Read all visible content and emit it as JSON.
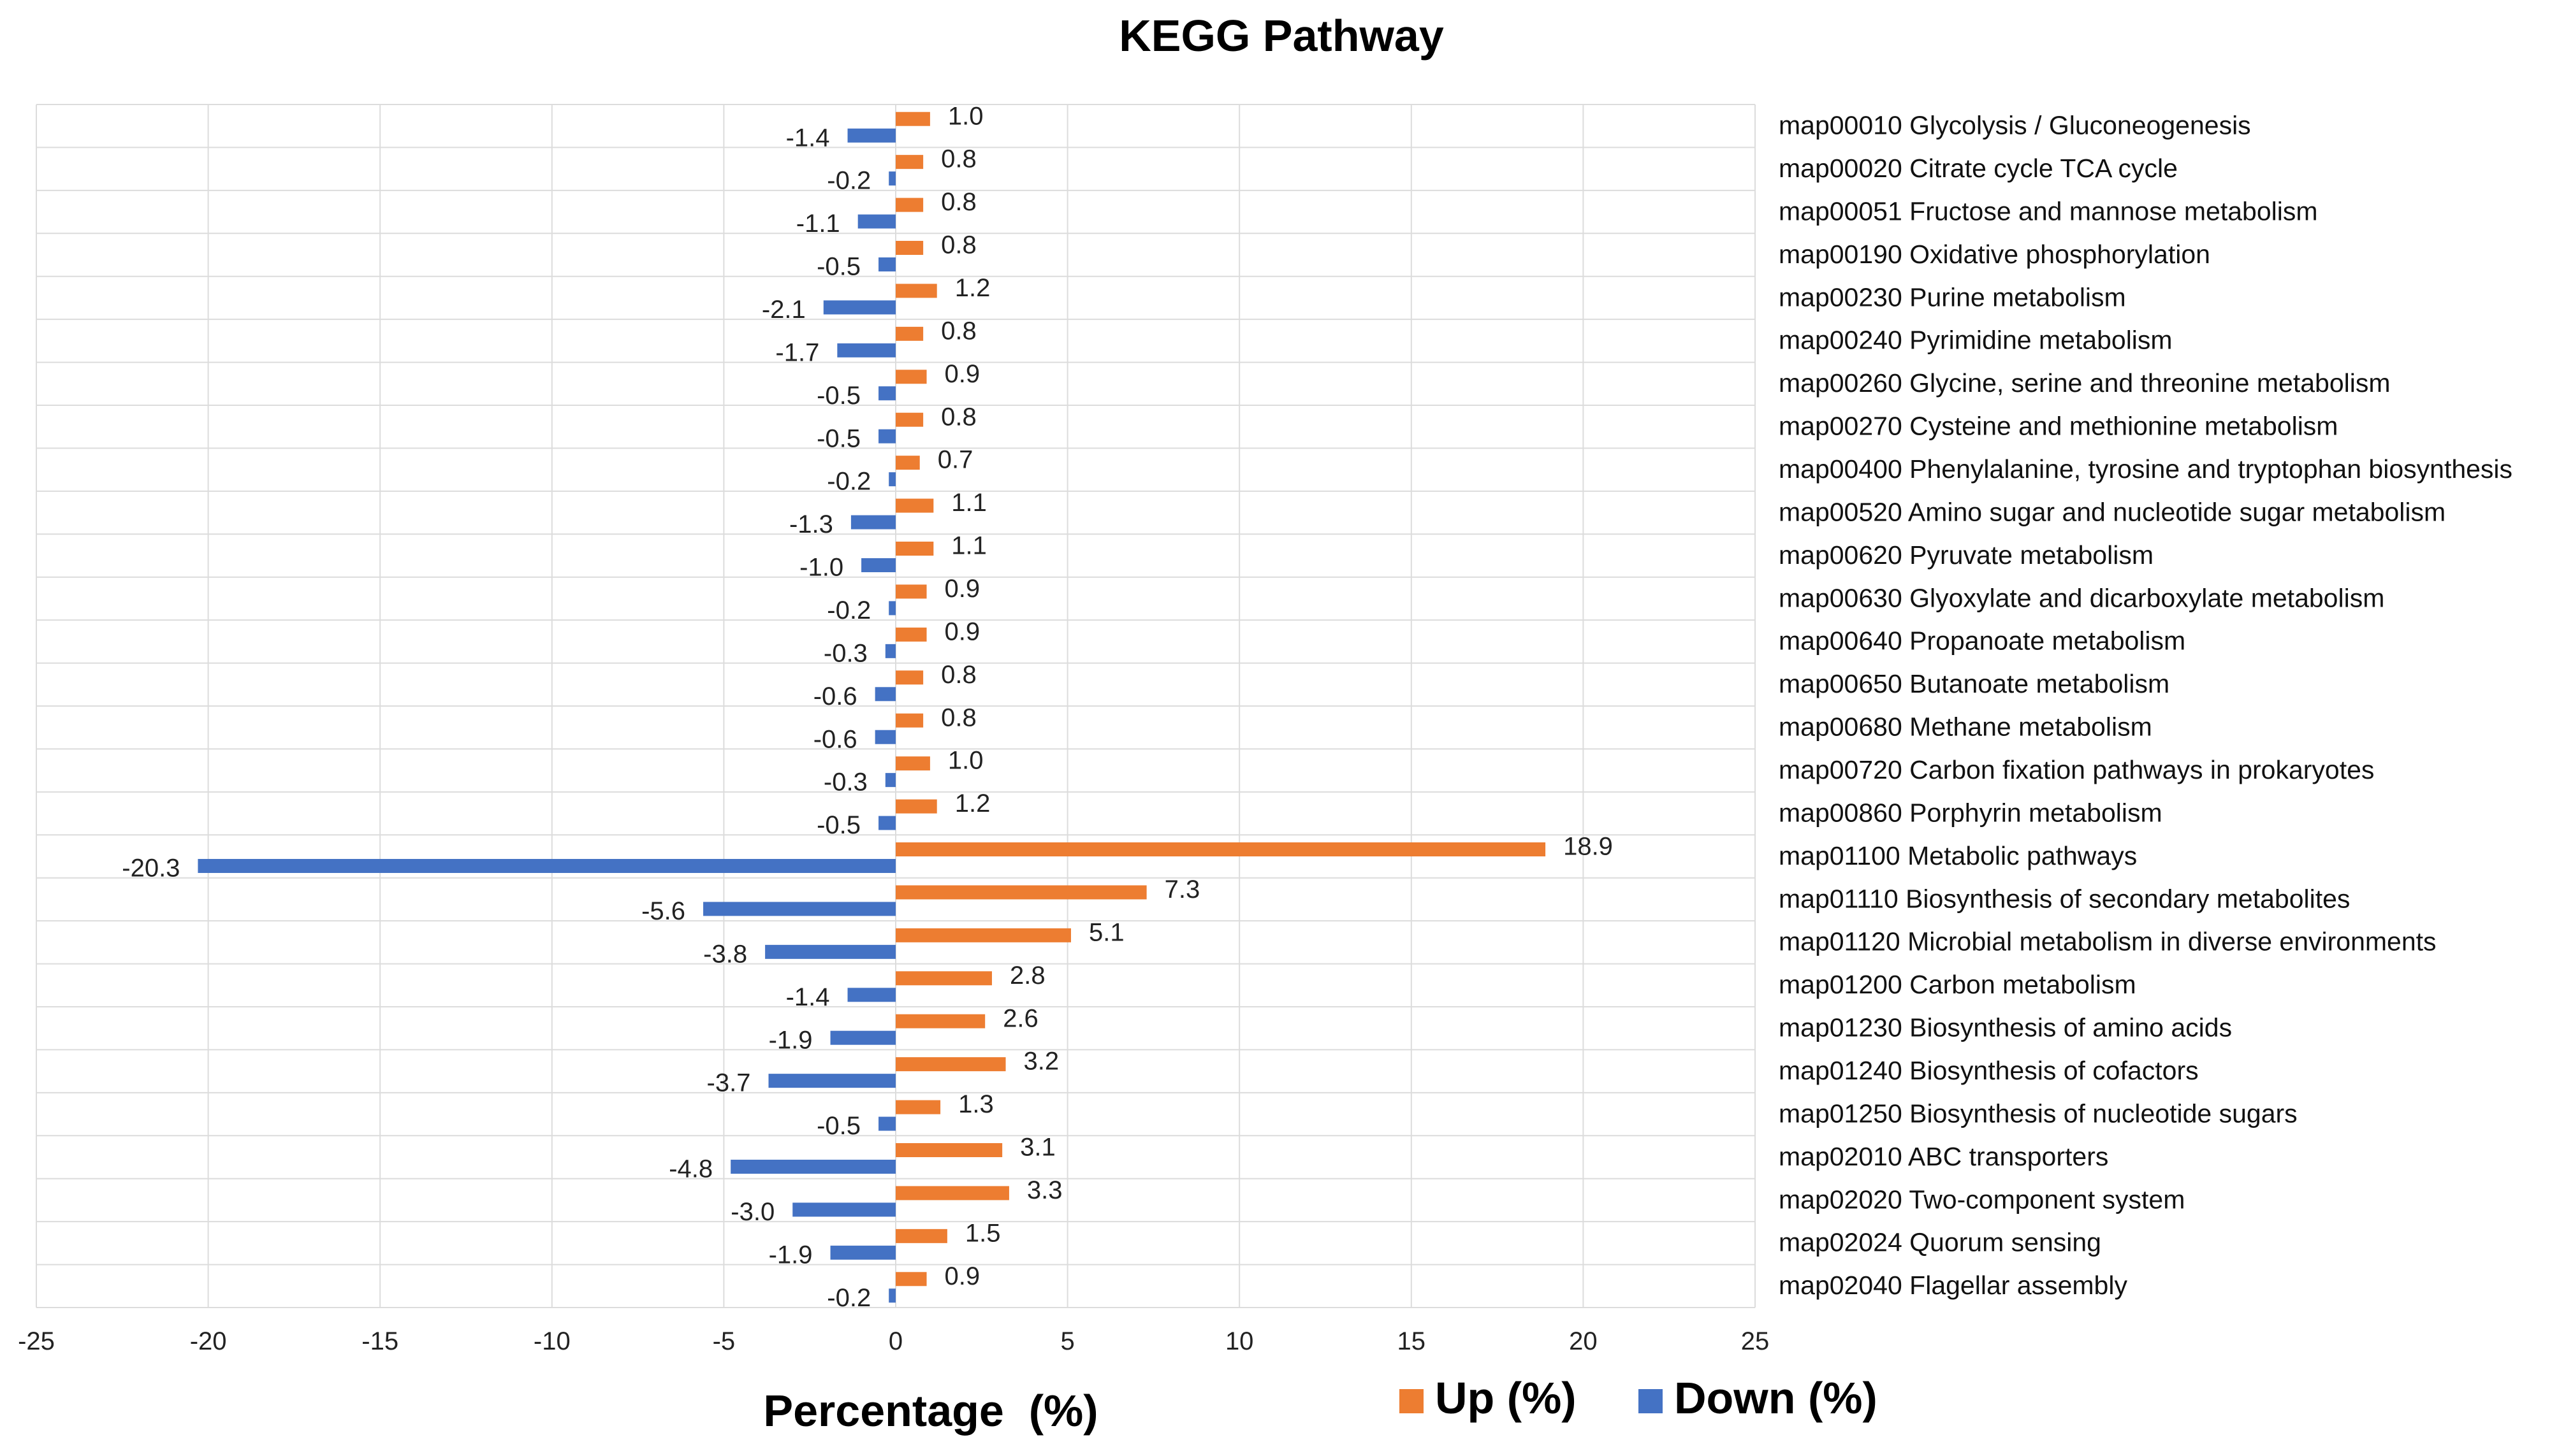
{
  "chart_data": {
    "type": "bar",
    "orientation": "horizontal",
    "title": "KEGG Pathway",
    "xlabel": "Percentage  (%)",
    "ylabel": "",
    "xlim": [
      -25,
      25
    ],
    "xticks": [
      -25,
      -20,
      -15,
      -10,
      -5,
      0,
      5,
      10,
      15,
      20,
      25
    ],
    "grid": true,
    "legend_position": "bottom-right",
    "categories": [
      "map00010 Glycolysis / Gluconeogenesis",
      "map00020 Citrate cycle TCA cycle",
      "map00051 Fructose and mannose metabolism",
      "map00190 Oxidative phosphorylation",
      "map00230 Purine metabolism",
      "map00240 Pyrimidine metabolism",
      "map00260 Glycine, serine and threonine metabolism",
      "map00270 Cysteine and methionine metabolism",
      "map00400 Phenylalanine, tyrosine and tryptophan biosynthesis",
      "map00520 Amino sugar and nucleotide sugar metabolism",
      "map00620 Pyruvate metabolism",
      "map00630 Glyoxylate and dicarboxylate metabolism",
      "map00640 Propanoate metabolism",
      "map00650 Butanoate metabolism",
      "map00680 Methane metabolism",
      "map00720 Carbon fixation pathways in prokaryotes",
      "map00860 Porphyrin metabolism",
      "map01100 Metabolic pathways",
      "map01110 Biosynthesis of secondary metabolites",
      "map01120 Microbial metabolism in diverse environments",
      "map01200 Carbon metabolism",
      "map01230 Biosynthesis of amino acids",
      "map01240 Biosynthesis of cofactors",
      "map01250 Biosynthesis of nucleotide sugars",
      "map02010 ABC transporters",
      "map02020 Two-component system",
      "map02024 Quorum sensing",
      "map02040 Flagellar assembly"
    ],
    "series": [
      {
        "name": "Up (%)",
        "color": "#ed7d31",
        "values": [
          1.0,
          0.8,
          0.8,
          0.8,
          1.2,
          0.8,
          0.9,
          0.8,
          0.7,
          1.1,
          1.1,
          0.9,
          0.9,
          0.8,
          0.8,
          1.0,
          1.2,
          18.9,
          7.3,
          5.1,
          2.8,
          2.6,
          3.2,
          1.3,
          3.1,
          3.3,
          1.5,
          0.9
        ]
      },
      {
        "name": "Down (%)",
        "color": "#4472c4",
        "values": [
          -1.4,
          -0.2,
          -1.1,
          -0.5,
          -2.1,
          -1.7,
          -0.5,
          -0.5,
          -0.2,
          -1.3,
          -1.0,
          -0.2,
          -0.3,
          -0.6,
          -0.6,
          -0.3,
          -0.5,
          -20.3,
          -5.6,
          -3.8,
          -1.4,
          -1.9,
          -3.7,
          -0.5,
          -4.8,
          -3.0,
          -1.9,
          -0.2
        ]
      }
    ]
  }
}
